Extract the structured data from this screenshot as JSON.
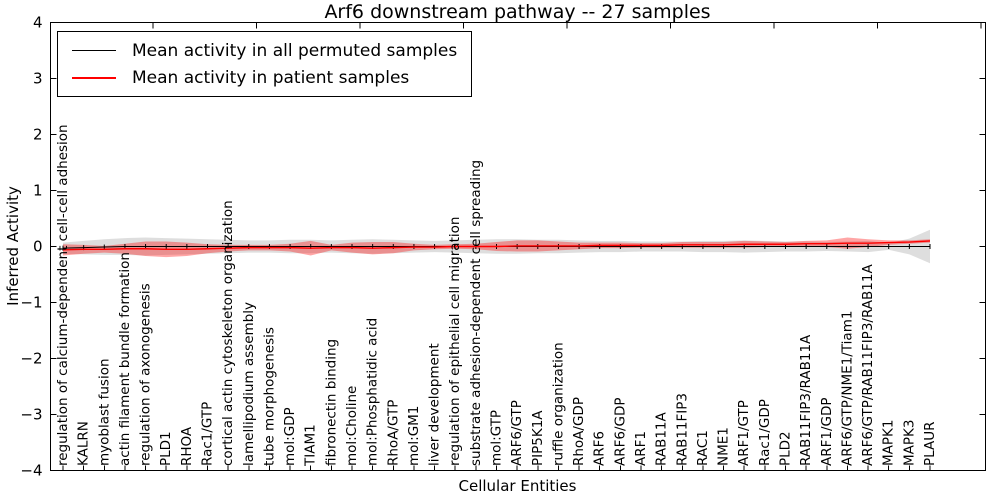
{
  "figure": {
    "background": "#ffffff",
    "frame_color": "#000000"
  },
  "chart_data": {
    "type": "line",
    "title": "Arf6 downstream pathway -- 27 samples",
    "xlabel": "Cellular Entities",
    "ylabel": "Inferred Activity",
    "ylim": [
      -4,
      4
    ],
    "ytick_values": [
      4,
      3,
      2,
      1,
      0,
      -1,
      -2,
      -3,
      -4
    ],
    "ytick_labels": [
      "4",
      "3",
      "2",
      "1",
      "0",
      "−1",
      "−2",
      "−3",
      "−4"
    ],
    "grid": false,
    "legend": {
      "position": "upper left",
      "entries": [
        {
          "label": "Mean activity in all permuted samples",
          "color": "#000000"
        },
        {
          "label": "Mean activity in patient samples",
          "color": "#ff0000"
        }
      ]
    },
    "categories": [
      "regulation of calcium-dependent cell-cell adhesion",
      "KALRN",
      "myoblast fusion",
      "actin filament bundle formation",
      "regulation of axonogenesis",
      "PLD1",
      "RHOA",
      "Rac1/GTP",
      "cortical actin cytoskeleton organization",
      "lamellipodium assembly",
      "tube morphogenesis",
      "mol:GDP",
      "TIAM1",
      "fibronectin binding",
      "mol:Choline",
      "mol:Phosphatidic acid",
      "RhoA/GTP",
      "mol:GM1",
      "liver development",
      "regulation of epithelial cell migration",
      "substrate adhesion-dependent cell spreading",
      "mol:GTP",
      "ARF6/GTP",
      "PIP5K1A",
      "ruffle organization",
      "RhoA/GDP",
      "ARF6",
      "ARF6/GDP",
      "ARF1",
      "RAB11A",
      "RAB11FIP3",
      "RAC1",
      "NME1",
      "ARF1/GTP",
      "Rac1/GDP",
      "PLD2",
      "RAB11FIP3/RAB11A",
      "ARF1/GDP",
      "ARF6/GTP/NME1/Tiam1",
      "ARF6/GTP/RAB11FIP3/RAB11A",
      "MAPK1",
      "MAPK3",
      "PLAUR"
    ],
    "series": [
      {
        "name": "Mean activity in all permuted samples",
        "line_color": "#000000",
        "band_color": "rgba(0,0,0,0.13)",
        "values": [
          -0.03,
          -0.02,
          -0.01,
          0,
          0,
          0,
          0,
          0,
          0,
          0,
          0,
          0,
          0,
          0,
          0,
          0,
          0,
          0,
          0,
          0,
          0,
          0,
          0,
          0,
          0,
          0,
          0,
          0,
          0,
          0,
          0,
          0,
          0,
          0,
          0,
          0,
          0,
          0,
          0,
          0,
          0,
          0,
          0
        ],
        "band_halfwidth": [
          0.1,
          0.12,
          0.14,
          0.15,
          0.16,
          0.15,
          0.14,
          0.13,
          0.12,
          0.11,
          0.11,
          0.12,
          0.12,
          0.11,
          0.12,
          0.13,
          0.12,
          0.11,
          0.1,
          0.11,
          0.12,
          0.13,
          0.13,
          0.12,
          0.12,
          0.11,
          0.1,
          0.1,
          0.09,
          0.09,
          0.09,
          0.1,
          0.1,
          0.11,
          0.1,
          0.09,
          0.09,
          0.08,
          0.09,
          0.1,
          0.06,
          0.14,
          0.3
        ]
      },
      {
        "name": "Mean activity in patient samples",
        "line_color": "#ff0000",
        "band_color": "rgba(255,0,0,0.35)",
        "values": [
          -0.06,
          -0.05,
          -0.05,
          -0.04,
          -0.04,
          -0.05,
          -0.05,
          -0.04,
          -0.03,
          -0.02,
          -0.02,
          -0.02,
          -0.03,
          -0.02,
          -0.02,
          -0.03,
          -0.02,
          -0.01,
          -0.01,
          0,
          0,
          0,
          0.01,
          0.01,
          0.01,
          0.01,
          0.02,
          0.02,
          0.02,
          0.02,
          0.03,
          0.03,
          0.03,
          0.04,
          0.04,
          0.04,
          0.05,
          0.05,
          0.06,
          0.06,
          0.07,
          0.08,
          0.1
        ],
        "band_halfwidth": [
          0.1,
          0.08,
          0.06,
          0.09,
          0.13,
          0.14,
          0.12,
          0.08,
          0.06,
          0.05,
          0.05,
          0.07,
          0.13,
          0.05,
          0.09,
          0.11,
          0.1,
          0.06,
          0.04,
          0.04,
          0.05,
          0.08,
          0.1,
          0.1,
          0.08,
          0.06,
          0.05,
          0.05,
          0.04,
          0.04,
          0.05,
          0.05,
          0.05,
          0.06,
          0.05,
          0.04,
          0.05,
          0.06,
          0.1,
          0.07,
          0.04,
          0.03,
          0.03
        ]
      }
    ]
  }
}
